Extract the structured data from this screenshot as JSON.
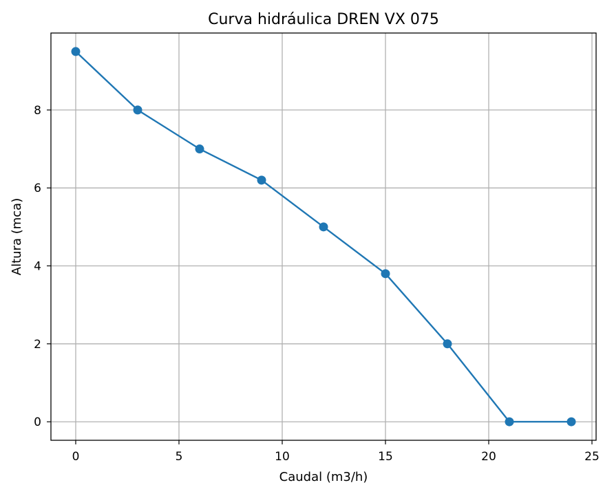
{
  "chart_data": {
    "type": "line",
    "title": "Curva hidráulica DREN VX 075",
    "xlabel": "Caudal (m3/h)",
    "ylabel": "Altura (mca)",
    "x": [
      0,
      3,
      6,
      9,
      12,
      15,
      18,
      21,
      24
    ],
    "series": [
      {
        "values": [
          9.5,
          8.0,
          7.0,
          6.2,
          5.0,
          3.8,
          2.0,
          0.0,
          0.0
        ],
        "color": "#1f77b4",
        "marker": "circle"
      }
    ],
    "xlim": [
      -1.2,
      25.2
    ],
    "ylim": [
      -0.475,
      9.975
    ],
    "xticks": [
      0,
      5,
      10,
      15,
      20,
      25
    ],
    "yticks": [
      0,
      2,
      4,
      6,
      8
    ],
    "xtick_labels": [
      "0",
      "5",
      "10",
      "15",
      "20",
      "25"
    ],
    "ytick_labels": [
      "0",
      "2",
      "4",
      "6",
      "8"
    ],
    "grid": true,
    "grid_color": "#b0b0b0"
  }
}
